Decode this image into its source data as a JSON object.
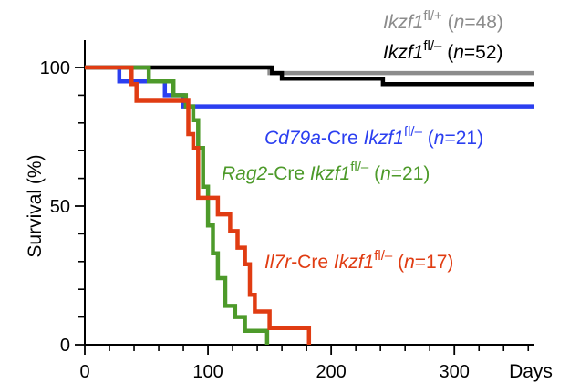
{
  "chart_data": {
    "type": "line",
    "title": "",
    "xlabel": "Days",
    "ylabel": "Survival (%)",
    "xlim": [
      0,
      365
    ],
    "ylim": [
      0,
      100
    ],
    "x_ticks": [
      0,
      100,
      200,
      300
    ],
    "x_tick_labels": [
      "0",
      "100",
      "200",
      "300"
    ],
    "x_minor_tick_step": 20,
    "y_ticks": [
      0,
      50,
      100
    ],
    "y_tick_labels": [
      "0",
      "50",
      "100"
    ],
    "y_minor_tick_step": 10,
    "grid": false,
    "legend": "inline-labels",
    "series": [
      {
        "name": "Ikzf1 fl/+ (n=48)",
        "label_parts": [
          {
            "t": "Ikzf1",
            "style": "italic"
          },
          {
            "t": "fl/+",
            "style": "sup"
          },
          {
            "t": " (",
            "style": "normal"
          },
          {
            "t": "n",
            "style": "italic"
          },
          {
            "t": "=48)",
            "style": "normal"
          }
        ],
        "color": "#8c8c8c",
        "points": [
          [
            0,
            100
          ],
          [
            150,
            100
          ],
          [
            150,
            98
          ],
          [
            365,
            98
          ]
        ]
      },
      {
        "name": "Ikzf1 fl/– (n=52)",
        "label_parts": [
          {
            "t": "Ikzf1",
            "style": "italic"
          },
          {
            "t": "fl/–",
            "style": "sup"
          },
          {
            "t": " (",
            "style": "normal"
          },
          {
            "t": "n",
            "style": "italic"
          },
          {
            "t": "=52)",
            "style": "normal"
          }
        ],
        "color": "#000000",
        "points": [
          [
            0,
            100
          ],
          [
            152,
            100
          ],
          [
            152,
            98
          ],
          [
            160,
            98
          ],
          [
            160,
            96
          ],
          [
            242,
            96
          ],
          [
            242,
            94
          ],
          [
            365,
            94
          ]
        ]
      },
      {
        "name": "Cd79a-Cre Ikzf1 fl/– (n=21)",
        "label_parts": [
          {
            "t": "Cd79a",
            "style": "italic"
          },
          {
            "t": "-Cre ",
            "style": "normal"
          },
          {
            "t": "Ikzf1",
            "style": "italic"
          },
          {
            "t": "fl/–",
            "style": "sup"
          },
          {
            "t": " (",
            "style": "normal"
          },
          {
            "t": "n",
            "style": "italic"
          },
          {
            "t": "=21)",
            "style": "normal"
          }
        ],
        "color": "#2b3ff0",
        "points": [
          [
            0,
            100
          ],
          [
            28,
            100
          ],
          [
            28,
            95
          ],
          [
            65,
            95
          ],
          [
            65,
            90
          ],
          [
            80,
            90
          ],
          [
            80,
            86
          ],
          [
            365,
            86
          ]
        ]
      },
      {
        "name": "Rag2-Cre Ikzf1 fl/– (n=21)",
        "label_parts": [
          {
            "t": "Rag2",
            "style": "italic"
          },
          {
            "t": "-Cre ",
            "style": "normal"
          },
          {
            "t": "Ikzf1",
            "style": "italic"
          },
          {
            "t": "fl/–",
            "style": "sup"
          },
          {
            "t": " (",
            "style": "normal"
          },
          {
            "t": "n",
            "style": "italic"
          },
          {
            "t": "=21)",
            "style": "normal"
          }
        ],
        "color": "#4d9a2a",
        "points": [
          [
            0,
            100
          ],
          [
            52,
            100
          ],
          [
            52,
            95
          ],
          [
            72,
            95
          ],
          [
            72,
            90
          ],
          [
            82,
            90
          ],
          [
            82,
            86
          ],
          [
            88,
            86
          ],
          [
            88,
            81
          ],
          [
            92,
            81
          ],
          [
            92,
            71
          ],
          [
            96,
            71
          ],
          [
            96,
            57
          ],
          [
            100,
            57
          ],
          [
            100,
            43
          ],
          [
            104,
            43
          ],
          [
            104,
            33
          ],
          [
            108,
            33
          ],
          [
            108,
            24
          ],
          [
            114,
            24
          ],
          [
            114,
            14
          ],
          [
            122,
            14
          ],
          [
            122,
            10
          ],
          [
            130,
            10
          ],
          [
            130,
            5
          ],
          [
            148,
            5
          ],
          [
            148,
            0
          ]
        ]
      },
      {
        "name": "Il7r-Cre Ikzf1 fl/– (n=17)",
        "label_parts": [
          {
            "t": "Il7r",
            "style": "italic"
          },
          {
            "t": "-Cre ",
            "style": "normal"
          },
          {
            "t": "Ikzf1",
            "style": "italic"
          },
          {
            "t": "fl/–",
            "style": "sup"
          },
          {
            "t": " (",
            "style": "normal"
          },
          {
            "t": "n",
            "style": "italic"
          },
          {
            "t": "=17)",
            "style": "normal"
          }
        ],
        "color": "#e03c12",
        "points": [
          [
            0,
            100
          ],
          [
            38,
            100
          ],
          [
            38,
            94
          ],
          [
            42,
            94
          ],
          [
            42,
            88
          ],
          [
            84,
            88
          ],
          [
            84,
            76
          ],
          [
            88,
            76
          ],
          [
            88,
            71
          ],
          [
            92,
            71
          ],
          [
            92,
            53
          ],
          [
            108,
            53
          ],
          [
            108,
            47
          ],
          [
            118,
            47
          ],
          [
            118,
            41
          ],
          [
            124,
            41
          ],
          [
            124,
            35
          ],
          [
            130,
            35
          ],
          [
            130,
            29
          ],
          [
            134,
            29
          ],
          [
            134,
            18
          ],
          [
            138,
            18
          ],
          [
            138,
            12
          ],
          [
            150,
            12
          ],
          [
            150,
            6
          ],
          [
            182,
            6
          ],
          [
            182,
            0
          ]
        ]
      }
    ]
  }
}
